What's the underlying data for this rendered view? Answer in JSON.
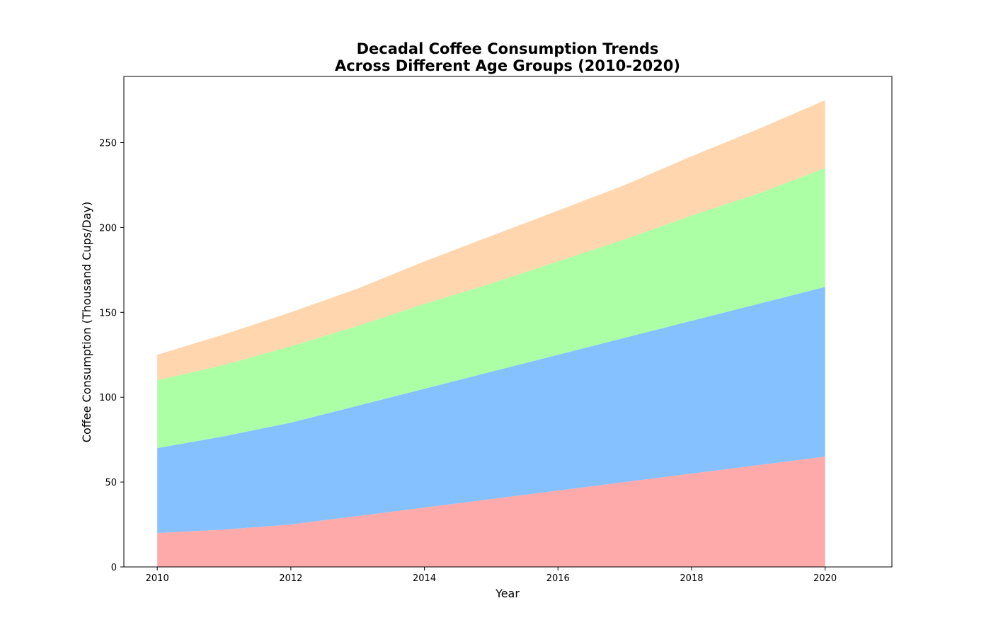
{
  "chart_data": {
    "type": "area",
    "stacked": true,
    "title": [
      "Decadal Coffee Consumption Trends",
      "Across Different Age Groups (2010-2020)"
    ],
    "xlabel": "Year",
    "ylabel": "Coffee Consumption (Thousand Cups/Day)",
    "x": [
      2010,
      2011,
      2012,
      2013,
      2014,
      2015,
      2016,
      2017,
      2018,
      2019,
      2020
    ],
    "xticks": [
      2010,
      2012,
      2014,
      2016,
      2018,
      2020
    ],
    "yticks": [
      0,
      50,
      100,
      150,
      200,
      250
    ],
    "xlim": [
      2009.5,
      2021
    ],
    "ylim": [
      0,
      289
    ],
    "grid": false,
    "legend": "none",
    "series": [
      {
        "color": "#ffaaaa",
        "values": [
          20,
          22,
          25,
          30,
          35,
          40,
          45,
          50,
          55,
          60,
          65
        ]
      },
      {
        "color": "#85c1ff",
        "values": [
          50,
          55,
          60,
          65,
          70,
          75,
          80,
          85,
          90,
          95,
          100
        ]
      },
      {
        "color": "#adffa6",
        "values": [
          40,
          42,
          45,
          47,
          50,
          52,
          55,
          58,
          62,
          65,
          70
        ]
      },
      {
        "color": "#ffd6ad",
        "values": [
          15,
          18,
          20,
          22,
          25,
          28,
          30,
          32,
          35,
          38,
          40
        ]
      }
    ]
  }
}
